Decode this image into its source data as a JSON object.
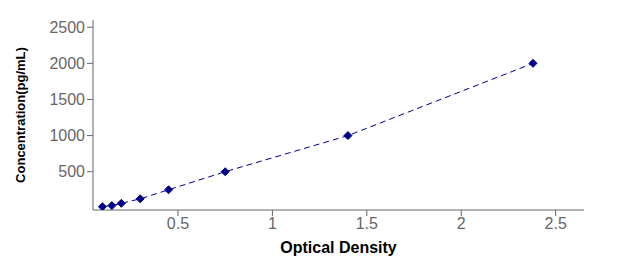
{
  "chart_data": {
    "type": "line",
    "x": [
      0.1,
      0.15,
      0.2,
      0.3,
      0.45,
      0.75,
      1.4,
      2.38
    ],
    "values": [
      15.6,
      31.3,
      62.5,
      125,
      250,
      500,
      1000,
      2000
    ],
    "color": "#00008B",
    "marker": "diamond",
    "line_style": "dashed",
    "xlabel": "Optical Density",
    "ylabel": "Concentration(pg/mL)",
    "xlim": [
      0.05,
      2.65
    ],
    "ylim": [
      -30,
      2600
    ],
    "xticks": [
      0.5,
      1,
      1.5,
      2,
      2.5
    ],
    "yticks": [
      500,
      1000,
      1500,
      2000,
      2500
    ],
    "grid": false
  }
}
